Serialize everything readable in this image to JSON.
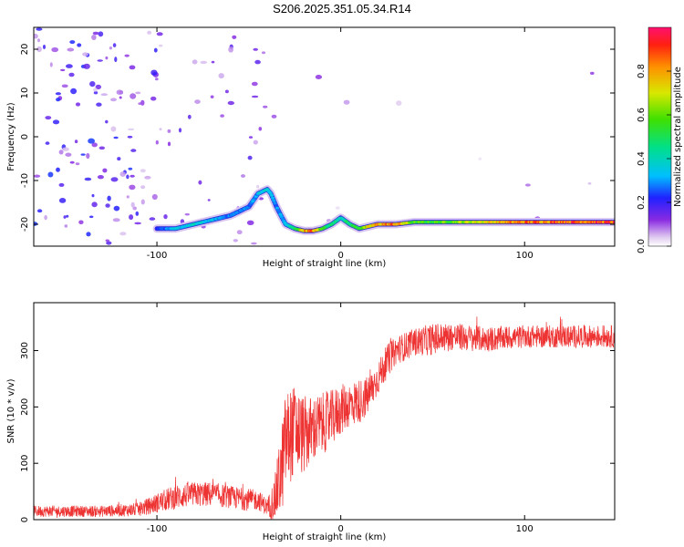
{
  "title": "S206.2025.351.05.34.R14",
  "chart_data": [
    {
      "type": "heatmap",
      "xlabel": "Height of straight line (km)",
      "ylabel": "Frequency (Hz)",
      "xlim": [
        -167,
        149
      ],
      "ylim": [
        -25,
        25
      ],
      "xticks": [
        -100,
        0,
        100
      ],
      "xtick_labels": [
        "-100",
        "0",
        "100"
      ],
      "yticks": [
        -20,
        -10,
        0,
        10,
        20
      ],
      "ytick_labels": [
        "-20",
        "-10",
        "0",
        "10",
        "20"
      ],
      "colorbar": {
        "label": "Normalized spectral amplitude",
        "range": [
          0,
          1
        ],
        "ticks": [
          0,
          0.2,
          0.4,
          0.6,
          0.8
        ],
        "tick_labels": [
          "0.0",
          "0.2",
          "0.4",
          "0.6",
          "0.8"
        ]
      },
      "ridge": {
        "x": [
          -100,
          -90,
          -80,
          -70,
          -60,
          -50,
          -45,
          -40,
          -38,
          -35,
          -30,
          -25,
          -20,
          -15,
          -10,
          -5,
          0,
          5,
          10,
          20,
          30,
          40,
          50,
          60,
          80,
          100,
          120,
          149
        ],
        "y": [
          -21,
          -21,
          -20,
          -19,
          -18,
          -16,
          -13,
          -12,
          -13,
          -16,
          -20,
          -21,
          -21.5,
          -21.5,
          -21,
          -20,
          -18.5,
          -20,
          -21,
          -20,
          -20,
          -19.5,
          -19.5,
          -19.5,
          -19.5,
          -19.5,
          -19.5,
          -19.5
        ],
        "amplitude": [
          0.25,
          0.35,
          0.4,
          0.35,
          0.3,
          0.3,
          0.35,
          0.4,
          0.35,
          0.3,
          0.35,
          0.5,
          0.85,
          0.9,
          0.6,
          0.5,
          0.45,
          0.5,
          0.6,
          0.85,
          0.9,
          0.6,
          0.6,
          0.65,
          0.8,
          0.9,
          0.95,
          0.95
        ]
      },
      "noise_regions": [
        {
          "x": [
            -167,
            -100
          ],
          "y": [
            -25,
            25
          ],
          "amplitude": 0.2,
          "density": 0.6
        },
        {
          "x": [
            -100,
            -40
          ],
          "y": [
            -25,
            25
          ],
          "amplitude": 0.15,
          "density": 0.25
        },
        {
          "x": [
            -40,
            149
          ],
          "y": [
            -25,
            25
          ],
          "amplitude": 0.1,
          "density": 0.02
        }
      ]
    },
    {
      "type": "line",
      "xlabel": "Height of straight line (km)",
      "ylabel": "SNR (10 * v/v)",
      "xlim": [
        -167,
        149
      ],
      "ylim": [
        0,
        385
      ],
      "xticks": [
        -100,
        0,
        100
      ],
      "xtick_labels": [
        "-100",
        "0",
        "100"
      ],
      "yticks": [
        0,
        100,
        200,
        300
      ],
      "ytick_labels": [
        "0",
        "100",
        "200",
        "300"
      ],
      "series": [
        {
          "color": "#ee3333",
          "x": [
            -167,
            -150,
            -130,
            -110,
            -95,
            -90,
            -80,
            -70,
            -60,
            -50,
            -45,
            -40,
            -36,
            -32,
            -30,
            -25,
            -20,
            -15,
            -10,
            -5,
            0,
            5,
            10,
            15,
            20,
            25,
            30,
            40,
            50,
            60,
            80,
            100,
            120,
            149
          ],
          "y": [
            15,
            15,
            15,
            18,
            35,
            40,
            45,
            45,
            40,
            35,
            35,
            22,
            35,
            90,
            140,
            160,
            150,
            160,
            170,
            180,
            195,
            205,
            210,
            220,
            250,
            280,
            300,
            315,
            320,
            325,
            320,
            325,
            325,
            325
          ],
          "noise": [
            10,
            10,
            10,
            12,
            20,
            22,
            22,
            22,
            20,
            20,
            18,
            15,
            40,
            80,
            90,
            80,
            70,
            60,
            55,
            50,
            45,
            40,
            40,
            35,
            30,
            30,
            25,
            25,
            28,
            25,
            22,
            20,
            20,
            20
          ]
        }
      ]
    }
  ],
  "colors": {
    "line": "#ee3333",
    "axis": "#000000",
    "background": "#ffffff"
  }
}
